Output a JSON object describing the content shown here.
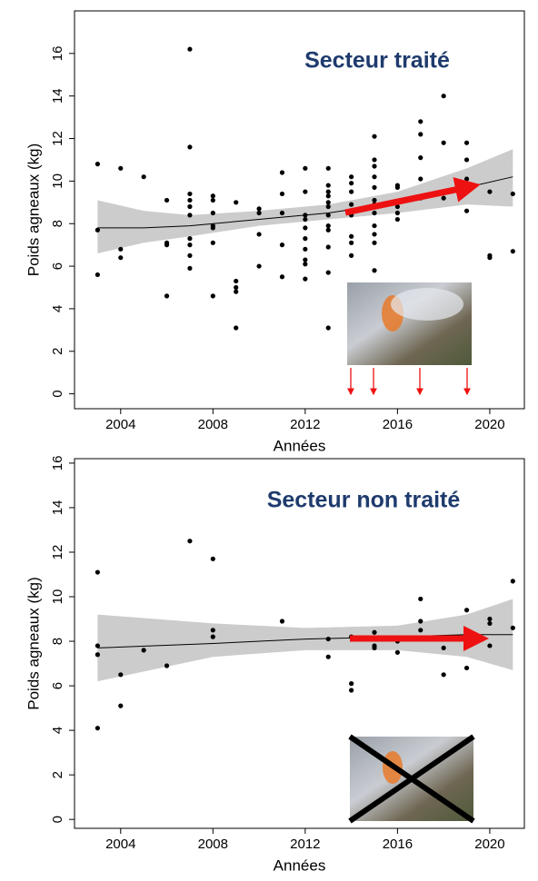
{
  "chart_data": [
    {
      "type": "scatter",
      "annotation": "Secteur traité",
      "xlabel": "Années",
      "ylabel": "Poids agneaux (kg)",
      "color": "#000000",
      "fit_color": "#000000",
      "band_color": "#cccccc",
      "xlim": [
        2002,
        2021.5
      ],
      "ylim": [
        -0.7,
        18
      ],
      "xticks": [
        2004,
        2008,
        2012,
        2016,
        2020
      ],
      "yticks": [
        0,
        2,
        4,
        6,
        8,
        10,
        12,
        14,
        16
      ],
      "x": [
        2003,
        2003,
        2003,
        2004,
        2004,
        2004,
        2005,
        2006,
        2006,
        2006,
        2006,
        2007,
        2007,
        2007,
        2007,
        2007,
        2007,
        2007,
        2007,
        2007,
        2007,
        2008,
        2008,
        2008,
        2008,
        2008,
        2008,
        2008,
        2009,
        2009,
        2009,
        2009,
        2009,
        2010,
        2010,
        2010,
        2010,
        2011,
        2011,
        2011,
        2011,
        2011,
        2012,
        2012,
        2012,
        2012,
        2012,
        2012,
        2012,
        2012,
        2012,
        2012,
        2013,
        2013,
        2013,
        2013,
        2013,
        2013,
        2013,
        2013,
        2013,
        2013,
        2013,
        2013,
        2014,
        2014,
        2014,
        2014,
        2014,
        2014,
        2014,
        2014,
        2015,
        2015,
        2015,
        2015,
        2015,
        2015,
        2015,
        2015,
        2015,
        2015,
        2015,
        2015,
        2016,
        2016,
        2016,
        2016,
        2016,
        2017,
        2017,
        2017,
        2017,
        2017,
        2018,
        2018,
        2018,
        2019,
        2019,
        2019,
        2019,
        2020,
        2020,
        2020,
        2021,
        2021
      ],
      "values": [
        10.8,
        7.7,
        5.6,
        10.6,
        6.8,
        6.4,
        10.2,
        9.1,
        7.1,
        7.0,
        4.6,
        16.2,
        11.6,
        9.4,
        9.1,
        8.8,
        8.4,
        7.3,
        7.0,
        6.5,
        5.9,
        9.3,
        9.1,
        8.5,
        7.9,
        7.8,
        7.1,
        4.6,
        9.0,
        5.3,
        5.0,
        4.8,
        3.1,
        8.7,
        8.5,
        7.5,
        6.0,
        10.4,
        9.4,
        8.5,
        7.0,
        5.5,
        10.6,
        9.5,
        8.4,
        8.2,
        7.8,
        7.3,
        6.8,
        6.3,
        6.1,
        5.4,
        10.6,
        9.8,
        9.5,
        9.3,
        9.0,
        8.8,
        8.4,
        7.9,
        7.7,
        6.9,
        5.7,
        3.1,
        10.2,
        9.9,
        9.5,
        8.9,
        8.4,
        7.4,
        7.1,
        6.5,
        12.1,
        11.0,
        10.7,
        10.2,
        9.7,
        9.1,
        8.9,
        8.5,
        7.9,
        7.5,
        7.1,
        5.8,
        9.8,
        9.7,
        8.8,
        8.5,
        8.2,
        12.8,
        12.2,
        11.1,
        10.1,
        9.2,
        14.0,
        11.8,
        9.2,
        11.8,
        11.0,
        10.1,
        8.6,
        9.5,
        6.5,
        6.4,
        9.4,
        6.7
      ],
      "fit": {
        "x": [
          2003,
          2005,
          2007,
          2010,
          2013,
          2016,
          2019,
          2021
        ],
        "values": [
          7.8,
          7.8,
          7.9,
          8.2,
          8.5,
          9.0,
          9.7,
          10.2
        ],
        "lower": [
          6.6,
          7.1,
          7.4,
          7.9,
          8.2,
          8.5,
          8.9,
          8.8
        ],
        "upper": [
          9.1,
          8.6,
          8.4,
          8.6,
          8.9,
          9.5,
          10.6,
          11.5
        ]
      }
    },
    {
      "type": "scatter",
      "annotation": "Secteur non traité",
      "xlabel": "Années",
      "ylabel": "Poids agneaux (kg)",
      "color": "#000000",
      "fit_color": "#000000",
      "band_color": "#cccccc",
      "xlim": [
        2002,
        2021.5
      ],
      "ylim": [
        -0.4,
        16.2
      ],
      "xticks": [
        2004,
        2008,
        2012,
        2016,
        2020
      ],
      "yticks": [
        0,
        2,
        4,
        6,
        8,
        10,
        12,
        14,
        16
      ],
      "x": [
        2003,
        2003,
        2003,
        2003,
        2004,
        2004,
        2005,
        2006,
        2007,
        2008,
        2008,
        2008,
        2011,
        2013,
        2013,
        2014,
        2014,
        2014,
        2015,
        2015,
        2015,
        2015,
        2016,
        2016,
        2017,
        2017,
        2017,
        2018,
        2018,
        2019,
        2019,
        2020,
        2020,
        2020,
        2021,
        2021
      ],
      "values": [
        11.1,
        7.8,
        7.4,
        4.1,
        6.5,
        5.1,
        7.6,
        6.9,
        12.5,
        11.7,
        8.5,
        8.2,
        8.9,
        8.1,
        7.3,
        8.2,
        6.1,
        5.8,
        8.4,
        8.1,
        7.8,
        7.7,
        8.0,
        7.5,
        9.9,
        8.9,
        8.5,
        7.7,
        6.5,
        9.4,
        6.8,
        9.0,
        8.8,
        7.8,
        10.7,
        8.6
      ],
      "fit": {
        "x": [
          2003,
          2008,
          2012,
          2016,
          2019,
          2021
        ],
        "values": [
          7.7,
          7.9,
          8.1,
          8.2,
          8.3,
          8.3
        ],
        "lower": [
          6.2,
          7.3,
          7.6,
          7.6,
          7.3,
          6.7
        ],
        "upper": [
          9.2,
          8.8,
          8.6,
          8.7,
          9.2,
          9.9
        ]
      }
    }
  ]
}
